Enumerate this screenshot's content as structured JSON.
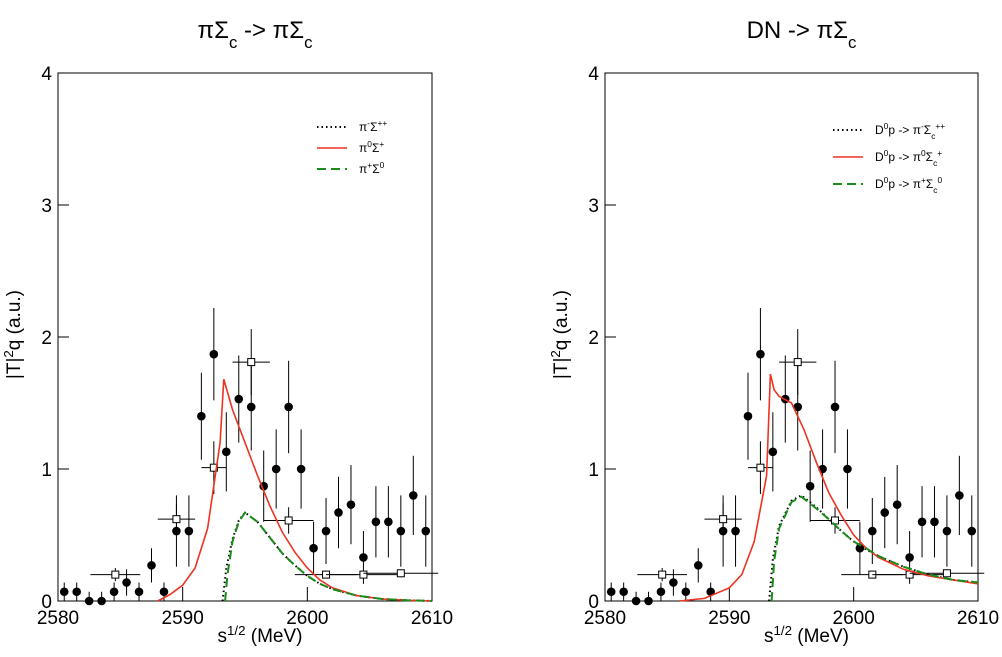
{
  "chart_data": [
    {
      "type": "line",
      "title": [
        [
          "πΣ",
          ""
        ],
        [
          "c",
          "sub"
        ],
        [
          " -> πΣ",
          ""
        ],
        [
          "c",
          "sub"
        ]
      ],
      "xlabel": [
        [
          "s",
          ""
        ],
        [
          "1/2",
          "sup"
        ],
        [
          " (MeV)",
          ""
        ]
      ],
      "ylabel": [
        [
          "|T|",
          ""
        ],
        [
          "2",
          "sup"
        ],
        [
          "q (a.u.)",
          ""
        ]
      ],
      "xlim": [
        2580,
        2610
      ],
      "ylim": [
        0,
        4
      ],
      "xticks": [
        2580,
        2590,
        2600,
        2610
      ],
      "yticks": [
        0,
        1,
        2,
        3,
        4
      ],
      "legend": "upper right",
      "series": [
        {
          "name": [
            [
              "π",
              ""
            ],
            [
              "-",
              "sup"
            ],
            [
              "Σ",
              ""
            ],
            [
              "++",
              "sup"
            ]
          ],
          "color": "#000000",
          "dash": "dotted",
          "x": [
            2593.2,
            2593.5,
            2594,
            2594.5,
            2595,
            2596,
            2597,
            2598,
            2599,
            2600,
            2601,
            2602,
            2604,
            2606,
            2608,
            2610
          ],
          "values": [
            0,
            0.25,
            0.47,
            0.61,
            0.67,
            0.6,
            0.48,
            0.36,
            0.27,
            0.19,
            0.13,
            0.09,
            0.04,
            0.015,
            0.005,
            0
          ]
        },
        {
          "name": [
            [
              "π",
              ""
            ],
            [
              "0",
              "sup"
            ],
            [
              "Σ",
              ""
            ],
            [
              "+",
              "sup"
            ]
          ],
          "color": "#ee3322",
          "dash": "solid",
          "x": [
            2588,
            2589,
            2590,
            2591,
            2592,
            2593,
            2593.3,
            2594,
            2595,
            2596,
            2597,
            2598,
            2599,
            2600,
            2601,
            2602,
            2604,
            2606,
            2608,
            2610
          ],
          "values": [
            0,
            0.05,
            0.12,
            0.25,
            0.55,
            1.2,
            1.68,
            1.45,
            1.2,
            0.95,
            0.72,
            0.52,
            0.37,
            0.25,
            0.16,
            0.1,
            0.04,
            0.015,
            0.005,
            0
          ]
        },
        {
          "name": [
            [
              "π",
              ""
            ],
            [
              "+",
              "sup"
            ],
            [
              "Σ",
              ""
            ],
            [
              "0",
              "sup"
            ]
          ],
          "color": "#1a8c1a",
          "dash": "dashed",
          "x": [
            2593.4,
            2593.6,
            2594,
            2594.5,
            2595,
            2596,
            2597,
            2598,
            2599,
            2600,
            2601,
            2602,
            2604,
            2606,
            2608,
            2610
          ],
          "values": [
            0,
            0.2,
            0.45,
            0.6,
            0.67,
            0.6,
            0.48,
            0.36,
            0.27,
            0.19,
            0.13,
            0.09,
            0.04,
            0.015,
            0.005,
            0
          ]
        }
      ],
      "points": {
        "x": [
          2580.5,
          2581.5,
          2582.5,
          2583.5,
          2584.5,
          2585.5,
          2586.5,
          2587.5,
          2588.5,
          2589.5,
          2590.5,
          2591.5,
          2592.5,
          2593.5,
          2594.5,
          2595.5,
          2596.5,
          2597.5,
          2598.5,
          2599.5,
          2600.5,
          2601.5,
          2602.5,
          2603.5,
          2604.5,
          2605.5,
          2606.5,
          2607.5,
          2608.5,
          2609.5
        ],
        "values": [
          0.07,
          0.07,
          0,
          0,
          0.07,
          0.14,
          0.07,
          0.27,
          0.07,
          0.53,
          0.53,
          1.4,
          1.87,
          1.13,
          1.53,
          1.47,
          0.87,
          1.0,
          1.47,
          1.0,
          0.4,
          0.53,
          0.67,
          0.73,
          0.33,
          0.6,
          0.6,
          0.53,
          0.8,
          0.53
        ],
        "errors": [
          0.07,
          0.07,
          0.07,
          0.07,
          0.07,
          0.1,
          0.07,
          0.13,
          0.07,
          0.27,
          0.27,
          0.33,
          0.35,
          0.3,
          0.33,
          0.33,
          0.27,
          0.3,
          0.35,
          0.3,
          0.2,
          0.25,
          0.27,
          0.3,
          0.2,
          0.27,
          0.27,
          0.27,
          0.3,
          0.27
        ]
      },
      "squares": {
        "x": [
          2584.6,
          2589.5,
          2592.5,
          2595.5,
          2598.5,
          2601.5,
          2604.5,
          2607.5
        ],
        "values": [
          0.2,
          0.62,
          1.01,
          1.81,
          0.61,
          0.2,
          0.2,
          0.21
        ],
        "xerrors": [
          2,
          1.5,
          1,
          1.5,
          2,
          2.5,
          3,
          3
        ],
        "errors": [
          0.05,
          0.12,
          0.2,
          0.25,
          0.1,
          0.03,
          0.03,
          0.03
        ]
      }
    },
    {
      "type": "line",
      "title": [
        [
          "DN -> πΣ",
          ""
        ],
        [
          "c",
          "sub"
        ]
      ],
      "xlabel": [
        [
          "s",
          ""
        ],
        [
          "1/2",
          "sup"
        ],
        [
          " (MeV)",
          ""
        ]
      ],
      "ylabel": [
        [
          "|T|",
          ""
        ],
        [
          "2",
          "sup"
        ],
        [
          "q (a.u.)",
          ""
        ]
      ],
      "xlim": [
        2580,
        2610
      ],
      "ylim": [
        0,
        4
      ],
      "xticks": [
        2580,
        2590,
        2600,
        2610
      ],
      "yticks": [
        0,
        1,
        2,
        3,
        4
      ],
      "legend": "upper right",
      "series": [
        {
          "name": [
            [
              "D",
              ""
            ],
            [
              "0",
              "sup"
            ],
            [
              "p -> π",
              ""
            ],
            [
              "-",
              "sup"
            ],
            [
              "Σ",
              ""
            ],
            [
              "c",
              "sub"
            ],
            [
              "++",
              "sup"
            ]
          ],
          "color": "#000000",
          "dash": "dotted",
          "x": [
            2593.2,
            2593.5,
            2594,
            2595,
            2595.8,
            2597,
            2598,
            2599,
            2600,
            2601,
            2602,
            2604,
            2606,
            2608,
            2610
          ],
          "values": [
            0,
            0.32,
            0.57,
            0.76,
            0.8,
            0.71,
            0.62,
            0.53,
            0.45,
            0.39,
            0.34,
            0.26,
            0.2,
            0.16,
            0.14
          ]
        },
        {
          "name": [
            [
              "D",
              ""
            ],
            [
              "0",
              "sup"
            ],
            [
              "p -> π",
              ""
            ],
            [
              "0",
              "sup"
            ],
            [
              "Σ",
              ""
            ],
            [
              "c",
              "sub"
            ],
            [
              "+",
              "sup"
            ]
          ],
          "color": "#ee3322",
          "dash": "solid",
          "x": [
            2586,
            2588,
            2590,
            2591,
            2592,
            2593,
            2593.3,
            2593.6,
            2594,
            2595,
            2596,
            2597,
            2598,
            2599,
            2600,
            2601,
            2602,
            2604,
            2606,
            2608,
            2610
          ],
          "values": [
            0,
            0.02,
            0.1,
            0.2,
            0.45,
            0.95,
            1.72,
            1.6,
            1.55,
            1.5,
            1.3,
            1.05,
            0.82,
            0.65,
            0.5,
            0.4,
            0.33,
            0.24,
            0.19,
            0.16,
            0.13
          ]
        },
        {
          "name": [
            [
              "D",
              ""
            ],
            [
              "0",
              "sup"
            ],
            [
              "p -> π",
              ""
            ],
            [
              "+",
              "sup"
            ],
            [
              "Σ",
              ""
            ],
            [
              "c",
              "sub"
            ],
            [
              "0",
              "sup"
            ]
          ],
          "color": "#1a8c1a",
          "dash": "dashed",
          "x": [
            2593.4,
            2593.6,
            2594,
            2595,
            2595.8,
            2597,
            2598,
            2599,
            2600,
            2601,
            2602,
            2604,
            2606,
            2608,
            2610
          ],
          "values": [
            0,
            0.3,
            0.55,
            0.75,
            0.79,
            0.7,
            0.62,
            0.53,
            0.45,
            0.4,
            0.34,
            0.26,
            0.2,
            0.16,
            0.14
          ]
        }
      ],
      "points": {
        "x": [
          2580.5,
          2581.5,
          2582.5,
          2583.5,
          2584.5,
          2585.5,
          2586.5,
          2587.5,
          2588.5,
          2589.5,
          2590.5,
          2591.5,
          2592.5,
          2593.5,
          2594.5,
          2595.5,
          2596.5,
          2597.5,
          2598.5,
          2599.5,
          2600.5,
          2601.5,
          2602.5,
          2603.5,
          2604.5,
          2605.5,
          2606.5,
          2607.5,
          2608.5,
          2609.5
        ],
        "values": [
          0.07,
          0.07,
          0,
          0,
          0.07,
          0.14,
          0.07,
          0.27,
          0.07,
          0.53,
          0.53,
          1.4,
          1.87,
          1.13,
          1.53,
          1.47,
          0.87,
          1.0,
          1.47,
          1.0,
          0.4,
          0.53,
          0.67,
          0.73,
          0.33,
          0.6,
          0.6,
          0.53,
          0.8,
          0.53
        ],
        "errors": [
          0.07,
          0.07,
          0.07,
          0.07,
          0.07,
          0.1,
          0.07,
          0.13,
          0.07,
          0.27,
          0.27,
          0.33,
          0.35,
          0.3,
          0.33,
          0.33,
          0.27,
          0.3,
          0.35,
          0.3,
          0.2,
          0.25,
          0.27,
          0.3,
          0.2,
          0.27,
          0.27,
          0.27,
          0.3,
          0.27
        ]
      },
      "squares": {
        "x": [
          2584.6,
          2589.5,
          2592.5,
          2595.5,
          2598.5,
          2601.5,
          2604.5,
          2607.5
        ],
        "values": [
          0.2,
          0.62,
          1.01,
          1.81,
          0.61,
          0.2,
          0.2,
          0.21
        ],
        "xerrors": [
          2,
          1.5,
          1,
          1.5,
          2,
          2.5,
          3,
          3
        ],
        "errors": [
          0.05,
          0.12,
          0.2,
          0.25,
          0.1,
          0.03,
          0.03,
          0.03
        ]
      }
    }
  ]
}
